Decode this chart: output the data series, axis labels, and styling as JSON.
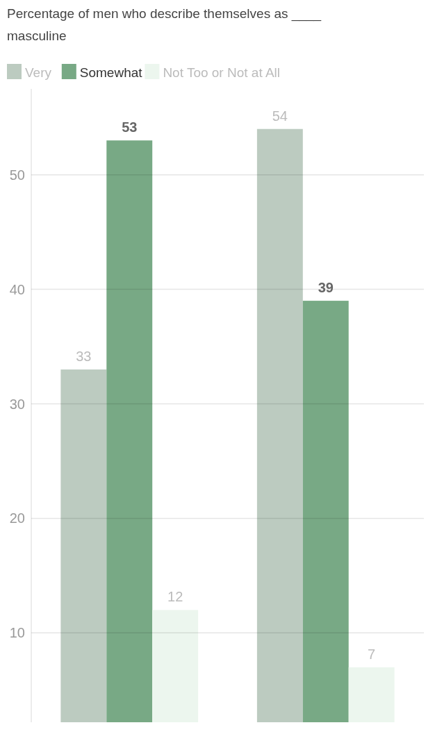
{
  "chart_data": {
    "type": "bar",
    "title": "Percentage of men who describe themselves as ____ masculine",
    "categories": [
      null,
      null
    ],
    "series": [
      {
        "name": "Very",
        "color": "#bccbc0",
        "values": [
          33,
          54
        ]
      },
      {
        "name": "Somewhat",
        "color": "#78a985",
        "values": [
          53,
          39
        ]
      },
      {
        "name": "Not Too or Not at All",
        "color": "#ecf6ee",
        "values": [
          12,
          7
        ]
      }
    ],
    "ylim": [
      2.2,
      57.5
    ],
    "yticks": [
      10,
      20,
      30,
      40,
      50
    ],
    "grid": "y",
    "legend": "top left",
    "data_labels": true
  }
}
